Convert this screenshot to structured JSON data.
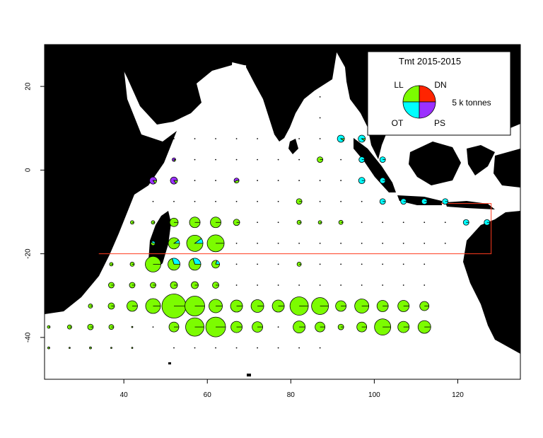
{
  "chart_data": {
    "type": "map-pie",
    "xlim": [
      21,
      135
    ],
    "ylim": [
      -50,
      30
    ],
    "x_ticks": [
      40,
      60,
      80,
      100,
      120
    ],
    "y_ticks": [
      -40,
      -20,
      0,
      20
    ],
    "legend": {
      "title": "Tmt 2015-2015",
      "scale_label": "5 k tonnes",
      "categories": [
        {
          "code": "LL",
          "color": "#7CFC00"
        },
        {
          "code": "DN",
          "color": "#FF2400"
        },
        {
          "code": "OT",
          "color": "#00FFFF"
        },
        {
          "code": "PS",
          "color": "#9B30FF"
        }
      ],
      "placement": "top-right"
    },
    "boundary_line": [
      [
        34,
        -20
      ],
      [
        128,
        -20
      ],
      [
        128,
        -8
      ],
      [
        116,
        -8
      ]
    ],
    "pies": [
      {
        "lon": 22,
        "lat": -37.5,
        "r": 2,
        "LL": 1
      },
      {
        "lon": 22,
        "lat": -42.5,
        "r": 1.5,
        "LL": 1
      },
      {
        "lon": 27,
        "lat": -37.5,
        "r": 3,
        "LL": 1
      },
      {
        "lon": 27,
        "lat": -42.5,
        "r": 1,
        "LL": 1
      },
      {
        "lon": 32,
        "lat": -32.5,
        "r": 3,
        "LL": 1
      },
      {
        "lon": 32,
        "lat": -37.5,
        "r": 4,
        "LL": 1
      },
      {
        "lon": 32,
        "lat": -42.5,
        "r": 1.5,
        "LL": 1
      },
      {
        "lon": 37,
        "lat": -22.5,
        "r": 2.5,
        "LL": 1
      },
      {
        "lon": 37,
        "lat": -27.5,
        "r": 4,
        "LL": 1
      },
      {
        "lon": 37,
        "lat": -32.5,
        "r": 4.5,
        "LL": 1
      },
      {
        "lon": 37,
        "lat": -37.5,
        "r": 3.5,
        "LL": 1
      },
      {
        "lon": 37,
        "lat": -42.5,
        "r": 1,
        "LL": 1
      },
      {
        "lon": 42,
        "lat": -12.5,
        "r": 2.5,
        "LL": 1
      },
      {
        "lon": 42,
        "lat": -22.5,
        "r": 3,
        "LL": 1
      },
      {
        "lon": 42,
        "lat": -27.5,
        "r": 4,
        "LL": 1
      },
      {
        "lon": 42,
        "lat": -32.5,
        "r": 7.5,
        "LL": 1
      },
      {
        "lon": 42,
        "lat": -37.5,
        "r": 1,
        "LL": 1
      },
      {
        "lon": 42,
        "lat": -42.5,
        "r": 1,
        "LL": 1
      },
      {
        "lon": 47,
        "lat": -2.5,
        "r": 5,
        "LL": 0.15,
        "PS": 0.85
      },
      {
        "lon": 47,
        "lat": -12.5,
        "r": 2.5,
        "LL": 1
      },
      {
        "lon": 47,
        "lat": -17.5,
        "r": 3,
        "LL": 0.6,
        "OT": 0.4
      },
      {
        "lon": 47,
        "lat": -22.5,
        "r": 11,
        "LL": 1
      },
      {
        "lon": 47,
        "lat": -27.5,
        "r": 4,
        "LL": 1
      },
      {
        "lon": 47,
        "lat": -32.5,
        "r": 10.5,
        "LL": 1
      },
      {
        "lon": 52,
        "lat": 2.5,
        "r": 2.5,
        "LL": 0.2,
        "PS": 0.8
      },
      {
        "lon": 52,
        "lat": -2.5,
        "r": 5,
        "LL": 0.15,
        "PS": 0.85
      },
      {
        "lon": 52,
        "lat": -12.5,
        "r": 6,
        "LL": 1
      },
      {
        "lon": 52,
        "lat": -17.5,
        "r": 8,
        "LL": 0.9,
        "OT": 0.1
      },
      {
        "lon": 52,
        "lat": -22.5,
        "r": 8.5,
        "LL": 0.7,
        "OT": 0.3
      },
      {
        "lon": 52,
        "lat": -27.5,
        "r": 5,
        "LL": 1
      },
      {
        "lon": 52,
        "lat": -32.5,
        "r": 17,
        "LL": 1
      },
      {
        "lon": 52,
        "lat": -37.5,
        "r": 7,
        "LL": 1
      },
      {
        "lon": 57,
        "lat": -12.5,
        "r": 7.5,
        "LL": 1
      },
      {
        "lon": 57,
        "lat": -17.5,
        "r": 11.5,
        "LL": 0.9,
        "OT": 0.1
      },
      {
        "lon": 57,
        "lat": -22.5,
        "r": 8.5,
        "LL": 0.7,
        "OT": 0.3
      },
      {
        "lon": 57,
        "lat": -27.5,
        "r": 5,
        "LL": 1
      },
      {
        "lon": 57,
        "lat": -32.5,
        "r": 14,
        "LL": 1
      },
      {
        "lon": 57,
        "lat": -37.5,
        "r": 13,
        "LL": 1
      },
      {
        "lon": 62,
        "lat": -12.5,
        "r": 7.5,
        "LL": 1
      },
      {
        "lon": 62,
        "lat": -17.5,
        "r": 12,
        "LL": 1
      },
      {
        "lon": 62,
        "lat": -22.5,
        "r": 5.5,
        "LL": 0.8,
        "OT": 0.2
      },
      {
        "lon": 62,
        "lat": -27.5,
        "r": 4.5,
        "LL": 1
      },
      {
        "lon": 62,
        "lat": -32.5,
        "r": 9.5,
        "LL": 1
      },
      {
        "lon": 62,
        "lat": -37.5,
        "r": 14,
        "LL": 1
      },
      {
        "lon": 67,
        "lat": -2.5,
        "r": 3.5,
        "LL": 0.4,
        "PS": 0.6
      },
      {
        "lon": 67,
        "lat": -12.5,
        "r": 4.5,
        "LL": 1
      },
      {
        "lon": 67,
        "lat": -32.5,
        "r": 8.5,
        "LL": 1
      },
      {
        "lon": 67,
        "lat": -37.5,
        "r": 8,
        "LL": 1
      },
      {
        "lon": 72,
        "lat": -32.5,
        "r": 9,
        "LL": 1
      },
      {
        "lon": 72,
        "lat": -37.5,
        "r": 7.5,
        "LL": 1
      },
      {
        "lon": 77,
        "lat": -32.5,
        "r": 8.5,
        "LL": 1
      },
      {
        "lon": 82,
        "lat": -7.5,
        "r": 4,
        "LL": 1
      },
      {
        "lon": 82,
        "lat": -12.5,
        "r": 3,
        "LL": 1
      },
      {
        "lon": 82,
        "lat": -22.5,
        "r": 3,
        "LL": 1
      },
      {
        "lon": 82,
        "lat": -32.5,
        "r": 13,
        "LL": 1
      },
      {
        "lon": 82,
        "lat": -37.5,
        "r": 8.5,
        "LL": 1
      },
      {
        "lon": 87,
        "lat": 2.5,
        "r": 4,
        "LL": 1
      },
      {
        "lon": 87,
        "lat": -12.5,
        "r": 2.5,
        "LL": 1
      },
      {
        "lon": 87,
        "lat": -32.5,
        "r": 12,
        "LL": 1
      },
      {
        "lon": 87,
        "lat": -37.5,
        "r": 7,
        "LL": 1
      },
      {
        "lon": 92,
        "lat": 7.5,
        "r": 5,
        "LL": 0.1,
        "OT": 0.9
      },
      {
        "lon": 92,
        "lat": -12.5,
        "r": 3,
        "LL": 1
      },
      {
        "lon": 92,
        "lat": -32.5,
        "r": 7.5,
        "LL": 1
      },
      {
        "lon": 92,
        "lat": -37.5,
        "r": 4,
        "LL": 1
      },
      {
        "lon": 97,
        "lat": 7.5,
        "r": 5,
        "LL": 0.1,
        "OT": 0.9
      },
      {
        "lon": 97,
        "lat": 2.5,
        "r": 4,
        "OT": 1
      },
      {
        "lon": 97,
        "lat": -2.5,
        "r": 4.5,
        "OT": 1
      },
      {
        "lon": 97,
        "lat": -32.5,
        "r": 10,
        "LL": 1
      },
      {
        "lon": 97,
        "lat": -37.5,
        "r": 7,
        "LL": 1
      },
      {
        "lon": 102,
        "lat": 2.5,
        "r": 4,
        "OT": 1
      },
      {
        "lon": 102,
        "lat": -2.5,
        "r": 4,
        "OT": 1
      },
      {
        "lon": 102,
        "lat": -7.5,
        "r": 4,
        "OT": 1
      },
      {
        "lon": 102,
        "lat": -32.5,
        "r": 8,
        "LL": 1
      },
      {
        "lon": 102,
        "lat": -37.5,
        "r": 11.5,
        "LL": 1
      },
      {
        "lon": 107,
        "lat": -7.5,
        "r": 4,
        "OT": 1
      },
      {
        "lon": 107,
        "lat": -32.5,
        "r": 8,
        "LL": 1
      },
      {
        "lon": 107,
        "lat": -37.5,
        "r": 8,
        "LL": 1
      },
      {
        "lon": 112,
        "lat": -7.5,
        "r": 4,
        "OT": 1
      },
      {
        "lon": 112,
        "lat": -32.5,
        "r": 6.5,
        "LL": 1
      },
      {
        "lon": 112,
        "lat": -37.5,
        "r": 9,
        "LL": 1
      },
      {
        "lon": 117,
        "lat": -7.5,
        "r": 4,
        "OT": 1
      },
      {
        "lon": 122,
        "lat": -12.5,
        "r": 4,
        "OT": 1
      },
      {
        "lon": 127,
        "lat": -12.5,
        "r": 4,
        "OT": 1
      }
    ],
    "small_dots": [
      [
        37,
        -42.5
      ],
      [
        42,
        -37.5
      ],
      [
        47,
        -37.5
      ],
      [
        52,
        -42.5
      ],
      [
        57,
        -42.5
      ],
      [
        62,
        -42.5
      ],
      [
        67,
        -42.5
      ],
      [
        72,
        -42.5
      ],
      [
        77,
        -42.5
      ],
      [
        82,
        -42.5
      ],
      [
        87,
        -42.5
      ],
      [
        42,
        -2.5
      ],
      [
        57,
        -2.5
      ],
      [
        62,
        -2.5
      ],
      [
        72,
        -2.5
      ],
      [
        77,
        -2.5
      ],
      [
        82,
        -2.5
      ],
      [
        87,
        -2.5
      ],
      [
        92,
        -2.5
      ],
      [
        47,
        2.5
      ],
      [
        57,
        2.5
      ],
      [
        62,
        2.5
      ],
      [
        67,
        2.5
      ],
      [
        72,
        2.5
      ],
      [
        77,
        2.5
      ],
      [
        82,
        2.5
      ],
      [
        92,
        2.5
      ],
      [
        52,
        7.5
      ],
      [
        57,
        7.5
      ],
      [
        62,
        7.5
      ],
      [
        67,
        7.5
      ],
      [
        72,
        7.5
      ],
      [
        77,
        7.5
      ],
      [
        82,
        7.5
      ],
      [
        87,
        7.5
      ],
      [
        87,
        12.5
      ],
      [
        87,
        17.5
      ],
      [
        87,
        22.5
      ],
      [
        47,
        -7.5
      ],
      [
        52,
        -7.5
      ],
      [
        57,
        -7.5
      ],
      [
        62,
        -7.5
      ],
      [
        67,
        -7.5
      ],
      [
        72,
        -7.5
      ],
      [
        77,
        -7.5
      ],
      [
        87,
        -7.5
      ],
      [
        92,
        -7.5
      ],
      [
        97,
        -7.5
      ],
      [
        72,
        -12.5
      ],
      [
        77,
        -12.5
      ],
      [
        97,
        -12.5
      ],
      [
        102,
        -12.5
      ],
      [
        107,
        -12.5
      ],
      [
        112,
        -12.5
      ],
      [
        117,
        -12.5
      ],
      [
        67,
        -17.5
      ],
      [
        72,
        -17.5
      ],
      [
        77,
        -17.5
      ],
      [
        82,
        -17.5
      ],
      [
        87,
        -17.5
      ],
      [
        92,
        -17.5
      ],
      [
        97,
        -17.5
      ],
      [
        102,
        -17.5
      ],
      [
        107,
        -17.5
      ],
      [
        112,
        -17.5
      ],
      [
        117,
        -17.5
      ],
      [
        67,
        -22.5
      ],
      [
        72,
        -22.5
      ],
      [
        77,
        -22.5
      ],
      [
        87,
        -22.5
      ],
      [
        92,
        -22.5
      ],
      [
        97,
        -22.5
      ],
      [
        102,
        -22.5
      ],
      [
        107,
        -22.5
      ],
      [
        112,
        -22.5
      ],
      [
        67,
        -27.5
      ],
      [
        72,
        -27.5
      ],
      [
        77,
        -27.5
      ],
      [
        82,
        -27.5
      ],
      [
        87,
        -27.5
      ],
      [
        92,
        -27.5
      ],
      [
        97,
        -27.5
      ],
      [
        102,
        -27.5
      ],
      [
        107,
        -27.5
      ],
      [
        112,
        -27.5
      ],
      [
        77,
        -37.5
      ]
    ]
  }
}
